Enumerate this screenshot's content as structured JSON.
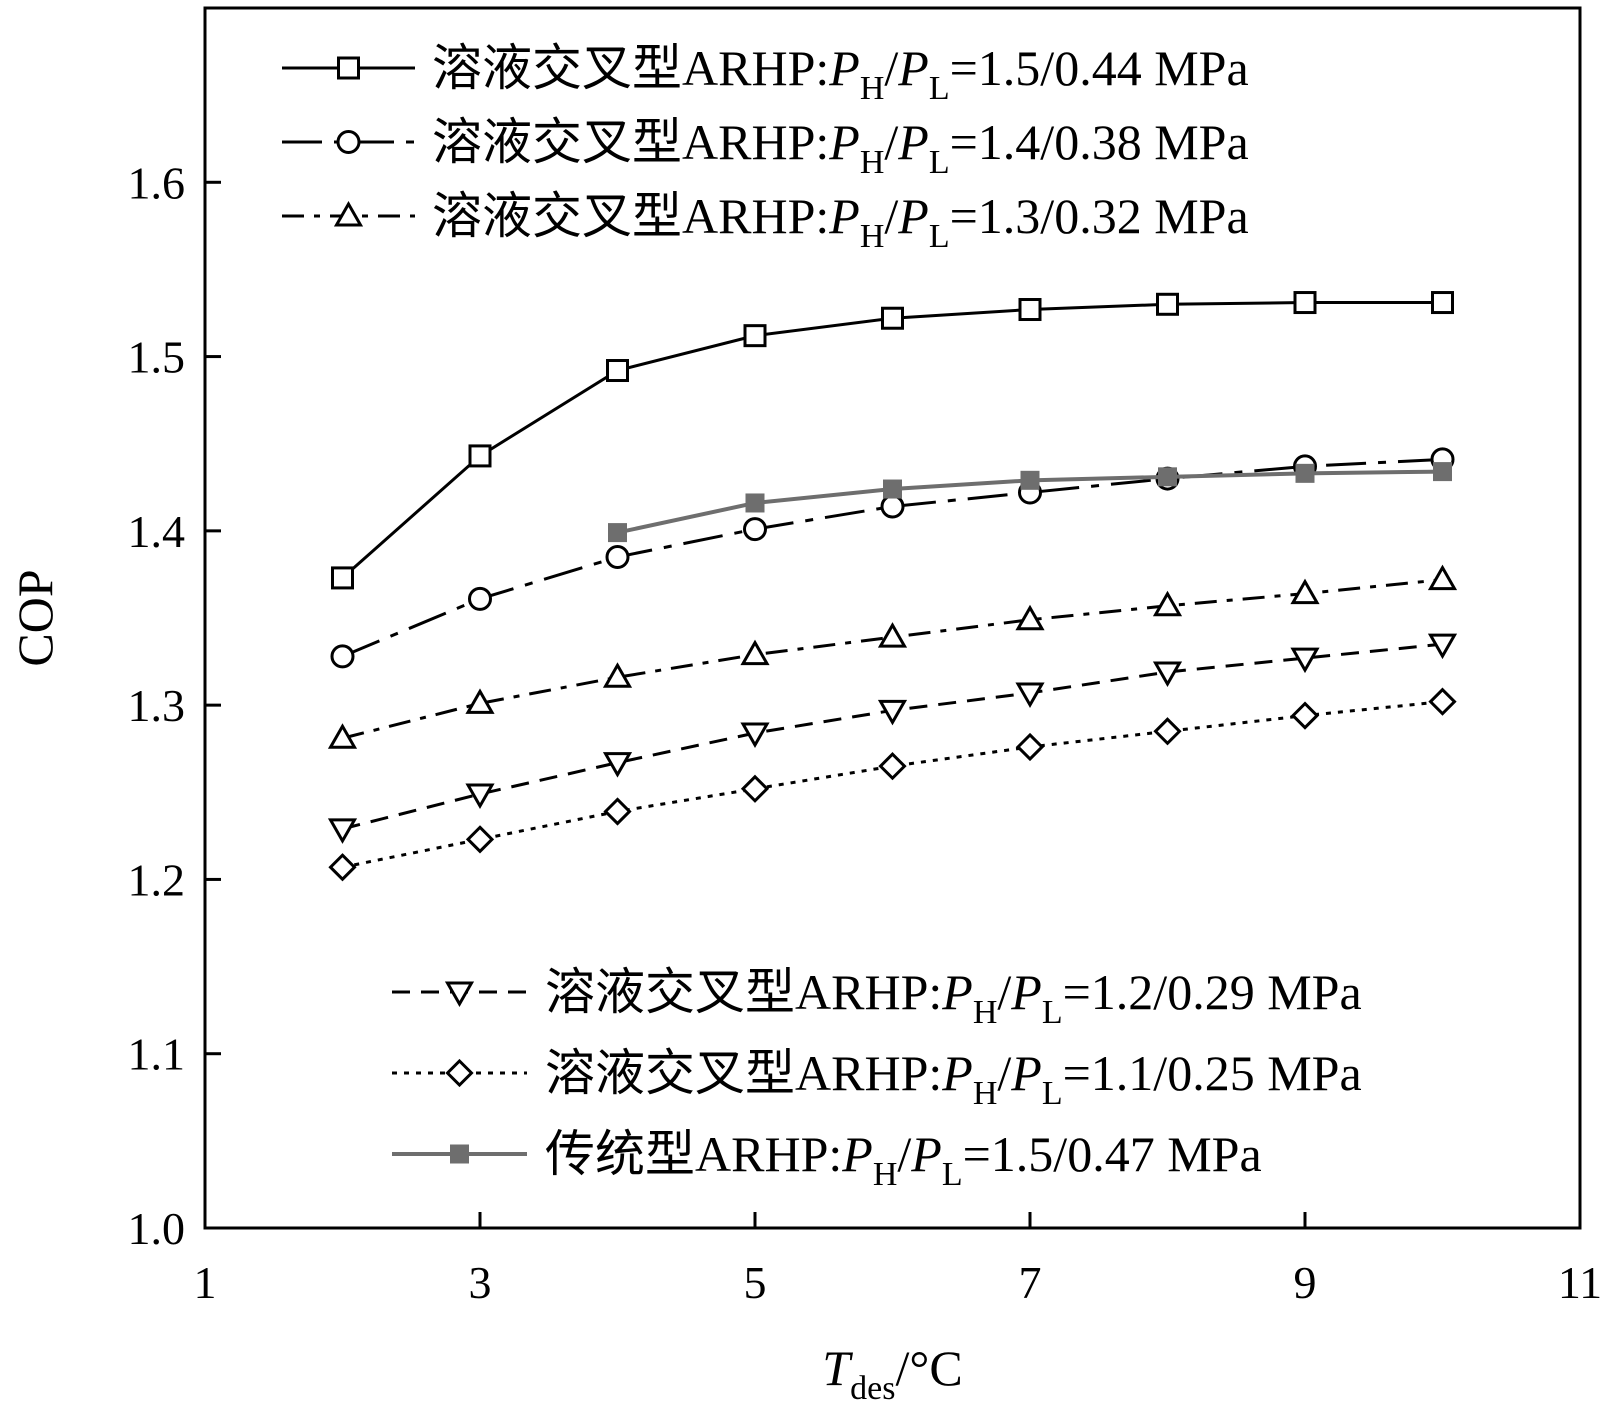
{
  "chart_data": {
    "type": "line",
    "title": "",
    "xlabel": {
      "main": "T",
      "sub": "des",
      "suffix": "/°C"
    },
    "ylabel": "COP",
    "xlim": [
      1,
      11
    ],
    "ylim": [
      1.0,
      1.7
    ],
    "xticks": [
      1,
      3,
      5,
      7,
      9,
      11
    ],
    "xtick_labels": [
      "1",
      "3",
      "5",
      "7",
      "9",
      "11"
    ],
    "yticks": [
      1.0,
      1.1,
      1.2,
      1.3,
      1.4,
      1.5,
      1.6
    ],
    "ytick_labels": [
      "1.0",
      "1.1",
      "1.2",
      "1.3",
      "1.4",
      "1.5",
      "1.6"
    ],
    "grid": false,
    "legend_placement": "top-left and bottom-right",
    "series": [
      {
        "legend": {
          "prefix": "溶液交叉型ARHP:",
          "sub1": "H",
          "sub2": "L",
          "value": "=1.5/0.44 MPa"
        },
        "marker": "square",
        "line_style": "solid",
        "color": "#000000",
        "x": [
          2,
          3,
          4,
          5,
          6,
          7,
          8,
          9,
          10
        ],
        "y": [
          1.373,
          1.443,
          1.492,
          1.512,
          1.522,
          1.527,
          1.53,
          1.531,
          1.531
        ]
      },
      {
        "legend": {
          "prefix": "溶液交叉型ARHP:",
          "sub1": "H",
          "sub2": "L",
          "value": "=1.4/0.38 MPa"
        },
        "marker": "circle",
        "line_style": "long-dash-dot",
        "color": "#000000",
        "x": [
          2,
          3,
          4,
          5,
          6,
          7,
          8,
          9,
          10
        ],
        "y": [
          1.328,
          1.361,
          1.385,
          1.401,
          1.414,
          1.422,
          1.43,
          1.437,
          1.441
        ]
      },
      {
        "legend": {
          "prefix": "溶液交叉型ARHP:",
          "sub1": "H",
          "sub2": "L",
          "value": "=1.3/0.32 MPa"
        },
        "marker": "triangle-up",
        "line_style": "dash-dot",
        "color": "#000000",
        "x": [
          2,
          3,
          4,
          5,
          6,
          7,
          8,
          9,
          10
        ],
        "y": [
          1.281,
          1.301,
          1.316,
          1.329,
          1.339,
          1.349,
          1.357,
          1.364,
          1.372
        ]
      },
      {
        "legend": {
          "prefix": "溶液交叉型ARHP:",
          "sub1": "H",
          "sub2": "L",
          "value": "=1.2/0.29 MPa"
        },
        "marker": "triangle-down",
        "line_style": "dashed",
        "color": "#000000",
        "x": [
          2,
          3,
          4,
          5,
          6,
          7,
          8,
          9,
          10
        ],
        "y": [
          1.229,
          1.249,
          1.267,
          1.284,
          1.297,
          1.307,
          1.319,
          1.327,
          1.335
        ]
      },
      {
        "legend": {
          "prefix": "溶液交叉型ARHP:",
          "sub1": "H",
          "sub2": "L",
          "value": "=1.1/0.25 MPa"
        },
        "marker": "diamond",
        "line_style": "dotted",
        "color": "#000000",
        "x": [
          2,
          3,
          4,
          5,
          6,
          7,
          8,
          9,
          10
        ],
        "y": [
          1.207,
          1.223,
          1.239,
          1.252,
          1.265,
          1.276,
          1.285,
          1.294,
          1.302
        ]
      },
      {
        "legend": {
          "prefix": "传统型ARHP:",
          "sub1": "H",
          "sub2": "L",
          "value": "=1.5/0.47 MPa"
        },
        "marker": "filled-square",
        "line_style": "solid",
        "color": "#6e6e6e",
        "x": [
          4,
          5,
          6,
          7,
          8,
          9,
          10
        ],
        "y": [
          1.399,
          1.416,
          1.424,
          1.429,
          1.431,
          1.433,
          1.434
        ]
      }
    ]
  }
}
